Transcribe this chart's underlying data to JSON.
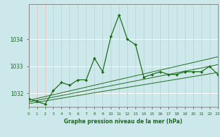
{
  "title": "Graphe pression niveau de la mer (hPa)",
  "bg_color": "#cce8ea",
  "line_color": "#1a6b1a",
  "x_values": [
    0,
    1,
    2,
    3,
    4,
    5,
    6,
    7,
    8,
    9,
    10,
    11,
    12,
    13,
    14,
    15,
    16,
    17,
    18,
    19,
    20,
    21,
    22,
    23
  ],
  "main_line": [
    1031.8,
    1031.7,
    1031.6,
    1032.1,
    1032.4,
    1032.3,
    1032.5,
    1032.5,
    1033.3,
    1032.8,
    1034.1,
    1034.9,
    1034.0,
    1033.8,
    1032.6,
    1032.7,
    1032.8,
    1032.7,
    1032.7,
    1032.8,
    1032.8,
    1032.8,
    1033.0,
    1032.7
  ],
  "trend_low": [
    1031.62,
    1031.67,
    1031.72,
    1031.77,
    1031.82,
    1031.87,
    1031.92,
    1031.97,
    1032.02,
    1032.07,
    1032.12,
    1032.17,
    1032.22,
    1032.27,
    1032.32,
    1032.37,
    1032.42,
    1032.47,
    1032.52,
    1032.57,
    1032.62,
    1032.67,
    1032.72,
    1032.77
  ],
  "trend_mid": [
    1031.68,
    1031.74,
    1031.8,
    1031.86,
    1031.92,
    1031.98,
    1032.04,
    1032.1,
    1032.16,
    1032.22,
    1032.28,
    1032.34,
    1032.4,
    1032.46,
    1032.52,
    1032.58,
    1032.64,
    1032.7,
    1032.76,
    1032.82,
    1032.88,
    1032.94,
    1033.0,
    1033.06
  ],
  "trend_high": [
    1031.74,
    1031.81,
    1031.88,
    1031.95,
    1032.02,
    1032.09,
    1032.16,
    1032.23,
    1032.3,
    1032.37,
    1032.44,
    1032.51,
    1032.58,
    1032.65,
    1032.72,
    1032.79,
    1032.86,
    1032.93,
    1033.0,
    1033.07,
    1033.14,
    1033.21,
    1033.28,
    1033.35
  ],
  "ylim": [
    1031.5,
    1035.3
  ],
  "yticks": [
    1032,
    1033,
    1034
  ],
  "xlim": [
    0,
    23
  ]
}
